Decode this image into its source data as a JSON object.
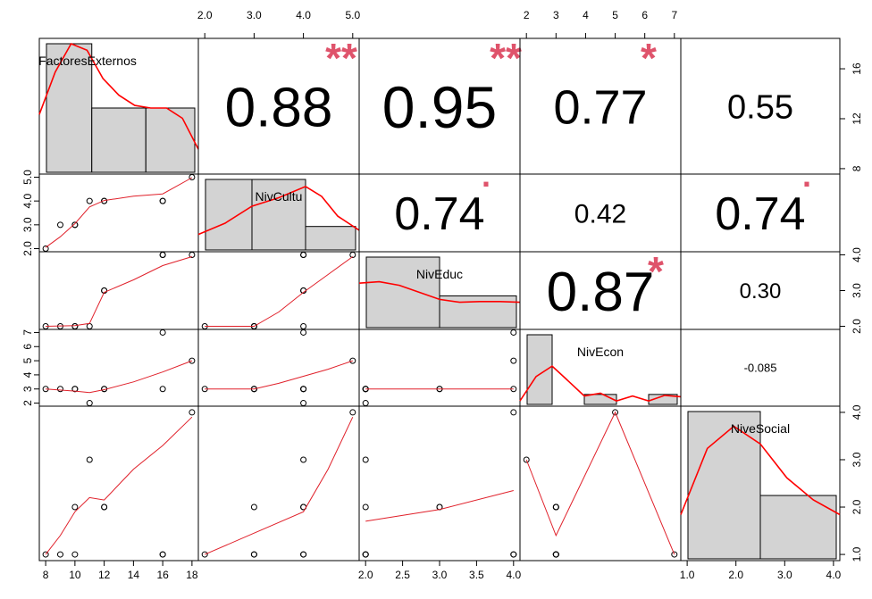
{
  "chart_data": {
    "type": "scatterplot-matrix",
    "variables": [
      "FactoresExternos",
      "NivCultu",
      "NivEduc",
      "NivEcon",
      "NiveSocial"
    ],
    "observations": {
      "FactoresExternos": [
        8,
        9,
        10,
        10,
        11,
        12,
        12,
        16,
        16,
        18
      ],
      "NivCultu": [
        2,
        3,
        3,
        3,
        4,
        4,
        4,
        4,
        4,
        5
      ],
      "NivEduc": [
        2,
        2,
        2,
        2,
        2,
        3,
        3,
        4,
        4,
        4
      ],
      "NivEcon": [
        3,
        3,
        3,
        3,
        2,
        3,
        3,
        7,
        3,
        5
      ],
      "NiveSocial": [
        1,
        1,
        1,
        2,
        3,
        2,
        2,
        1,
        1,
        4
      ]
    },
    "axis_ranges": {
      "FactoresExternos": [
        8,
        18
      ],
      "NivCultu": [
        2,
        5
      ],
      "NivEduc": [
        2,
        4
      ],
      "NivEcon": [
        2,
        7
      ],
      "NiveSocial": [
        1,
        4
      ]
    },
    "axis_ticks": {
      "FactoresExternos": [
        "8",
        "10",
        "12",
        "14",
        "16",
        "18"
      ],
      "NivCultu": [
        "2.0",
        "3.0",
        "4.0",
        "5.0"
      ],
      "NivEduc": [
        "2.0",
        "2.5",
        "3.0",
        "3.5",
        "4.0"
      ],
      "NivEcon": [
        "2",
        "3",
        "4",
        "5",
        "6",
        "7"
      ],
      "NiveSocial": [
        "1.0",
        "2.0",
        "3.0",
        "4.0"
      ],
      "FactoresExternos_right": [
        "8",
        "12",
        "16"
      ],
      "NivEduc_right": [
        "2.0",
        "3.0",
        "4.0"
      ]
    },
    "histograms": [
      {
        "variable": "FactoresExternos",
        "breaks": [
          8,
          11.3,
          14.7,
          18
        ],
        "heights": [
          1.0,
          0.5,
          0.5
        ]
      },
      {
        "variable": "NivCultu",
        "breaks": [
          2,
          3,
          4,
          5
        ],
        "heights": [
          1.0,
          1.0,
          0.333
        ]
      },
      {
        "variable": "NivEduc",
        "breaks": [
          2,
          3,
          4
        ],
        "heights": [
          1.0,
          0.45
        ]
      },
      {
        "variable": "NivEcon",
        "breaks": [
          2,
          3,
          4,
          5,
          6,
          7
        ],
        "heights": [
          1.0,
          0,
          0.143,
          0,
          0.143
        ]
      },
      {
        "variable": "NiveSocial",
        "breaks": [
          1,
          2.5,
          4
        ],
        "heights": [
          1.0,
          0.43
        ]
      }
    ],
    "densities": [
      {
        "variable": "FactoresExternos",
        "x": [
          8,
          9,
          10,
          11,
          12,
          13,
          14,
          15,
          16,
          17,
          18
        ],
        "y": [
          0.45,
          0.78,
          1.0,
          0.95,
          0.73,
          0.6,
          0.52,
          0.5,
          0.5,
          0.42,
          0.18
        ]
      },
      {
        "variable": "NivCultu",
        "x": [
          2,
          2.5,
          3,
          3.5,
          4,
          4.3,
          4.6,
          5
        ],
        "y": [
          0.22,
          0.38,
          0.62,
          0.74,
          0.9,
          0.76,
          0.48,
          0.28
        ]
      },
      {
        "variable": "NivEduc",
        "x": [
          2,
          2.25,
          2.5,
          2.75,
          3,
          3.25,
          3.5,
          3.75,
          4
        ],
        "y": [
          0.63,
          0.65,
          0.6,
          0.5,
          0.4,
          0.36,
          0.37,
          0.37,
          0.36
        ]
      },
      {
        "variable": "NivEcon",
        "x": [
          2,
          2.5,
          3,
          3.4,
          4,
          4.5,
          5,
          5.5,
          6,
          6.5,
          7
        ],
        "y": [
          0.05,
          0.4,
          0.55,
          0.38,
          0.12,
          0.16,
          0.05,
          0.12,
          0.05,
          0.13,
          0.11
        ]
      },
      {
        "variable": "NiveSocial",
        "x": [
          1,
          1.5,
          2,
          2.5,
          3,
          3.5,
          4
        ],
        "y": [
          0.3,
          0.75,
          0.9,
          0.78,
          0.55,
          0.4,
          0.3
        ]
      }
    ],
    "smoothers": [
      {
        "row": 1,
        "col": 0,
        "x": [
          8,
          9,
          10,
          11,
          12,
          14,
          16,
          18
        ],
        "y": [
          2.05,
          2.5,
          3.05,
          3.75,
          4.02,
          4.2,
          4.3,
          4.98
        ]
      },
      {
        "row": 2,
        "col": 0,
        "x": [
          8,
          10,
          11,
          12,
          14,
          16,
          18
        ],
        "y": [
          2.0,
          2.02,
          2.08,
          2.95,
          3.3,
          3.7,
          3.95
        ]
      },
      {
        "row": 3,
        "col": 0,
        "x": [
          8,
          10,
          11,
          12,
          14,
          16,
          18
        ],
        "y": [
          3.0,
          2.85,
          2.75,
          2.95,
          3.5,
          4.2,
          5.0
        ]
      },
      {
        "row": 4,
        "col": 0,
        "x": [
          8,
          9,
          10,
          11,
          12,
          14,
          16,
          18
        ],
        "y": [
          1.0,
          1.4,
          1.9,
          2.2,
          2.15,
          2.8,
          3.3,
          3.9
        ]
      },
      {
        "row": 2,
        "col": 1,
        "x": [
          2,
          3,
          3.5,
          4,
          4.5,
          5
        ],
        "y": [
          2.0,
          2.0,
          2.4,
          2.95,
          3.45,
          3.95
        ]
      },
      {
        "row": 3,
        "col": 1,
        "x": [
          2,
          3,
          3.5,
          4,
          4.5,
          5
        ],
        "y": [
          3.0,
          3.0,
          3.4,
          3.9,
          4.4,
          5.0
        ]
      },
      {
        "row": 4,
        "col": 1,
        "x": [
          2,
          3,
          4,
          4.5,
          5
        ],
        "y": [
          1.0,
          1.45,
          1.9,
          2.8,
          3.9
        ]
      },
      {
        "row": 3,
        "col": 2,
        "x": [
          2,
          3,
          4
        ],
        "y": [
          3.0,
          3.0,
          3.0
        ]
      },
      {
        "row": 4,
        "col": 2,
        "x": [
          2,
          3,
          4
        ],
        "y": [
          1.7,
          1.95,
          2.35
        ]
      },
      {
        "row": 4,
        "col": 3,
        "x": [
          2,
          3,
          5,
          7
        ],
        "y": [
          3.0,
          1.4,
          4.0,
          1.0
        ]
      }
    ],
    "correlations": [
      {
        "row": 0,
        "col": 1,
        "value": "0.88",
        "stars": "**",
        "size": 62
      },
      {
        "row": 0,
        "col": 2,
        "value": "0.95",
        "stars": "**",
        "size": 66
      },
      {
        "row": 0,
        "col": 3,
        "value": "0.77",
        "stars": "*",
        "size": 54
      },
      {
        "row": 0,
        "col": 4,
        "value": "0.55",
        "stars": "",
        "size": 38
      },
      {
        "row": 1,
        "col": 2,
        "value": "0.74",
        "stars": ".",
        "size": 52
      },
      {
        "row": 1,
        "col": 3,
        "value": "0.42",
        "stars": "",
        "size": 30
      },
      {
        "row": 1,
        "col": 4,
        "value": "0.74",
        "stars": ".",
        "size": 52
      },
      {
        "row": 2,
        "col": 3,
        "value": "0.87",
        "stars": "*",
        "size": 62
      },
      {
        "row": 2,
        "col": 4,
        "value": "0.30",
        "stars": "",
        "size": 24
      },
      {
        "row": 3,
        "col": 4,
        "value": "-0.085",
        "stars": "",
        "size": 13
      }
    ],
    "colors": {
      "histogram_fill": "#d3d3d3",
      "density": "#ff0000",
      "smoother": "#e0202a",
      "significance": "#df536b"
    }
  }
}
